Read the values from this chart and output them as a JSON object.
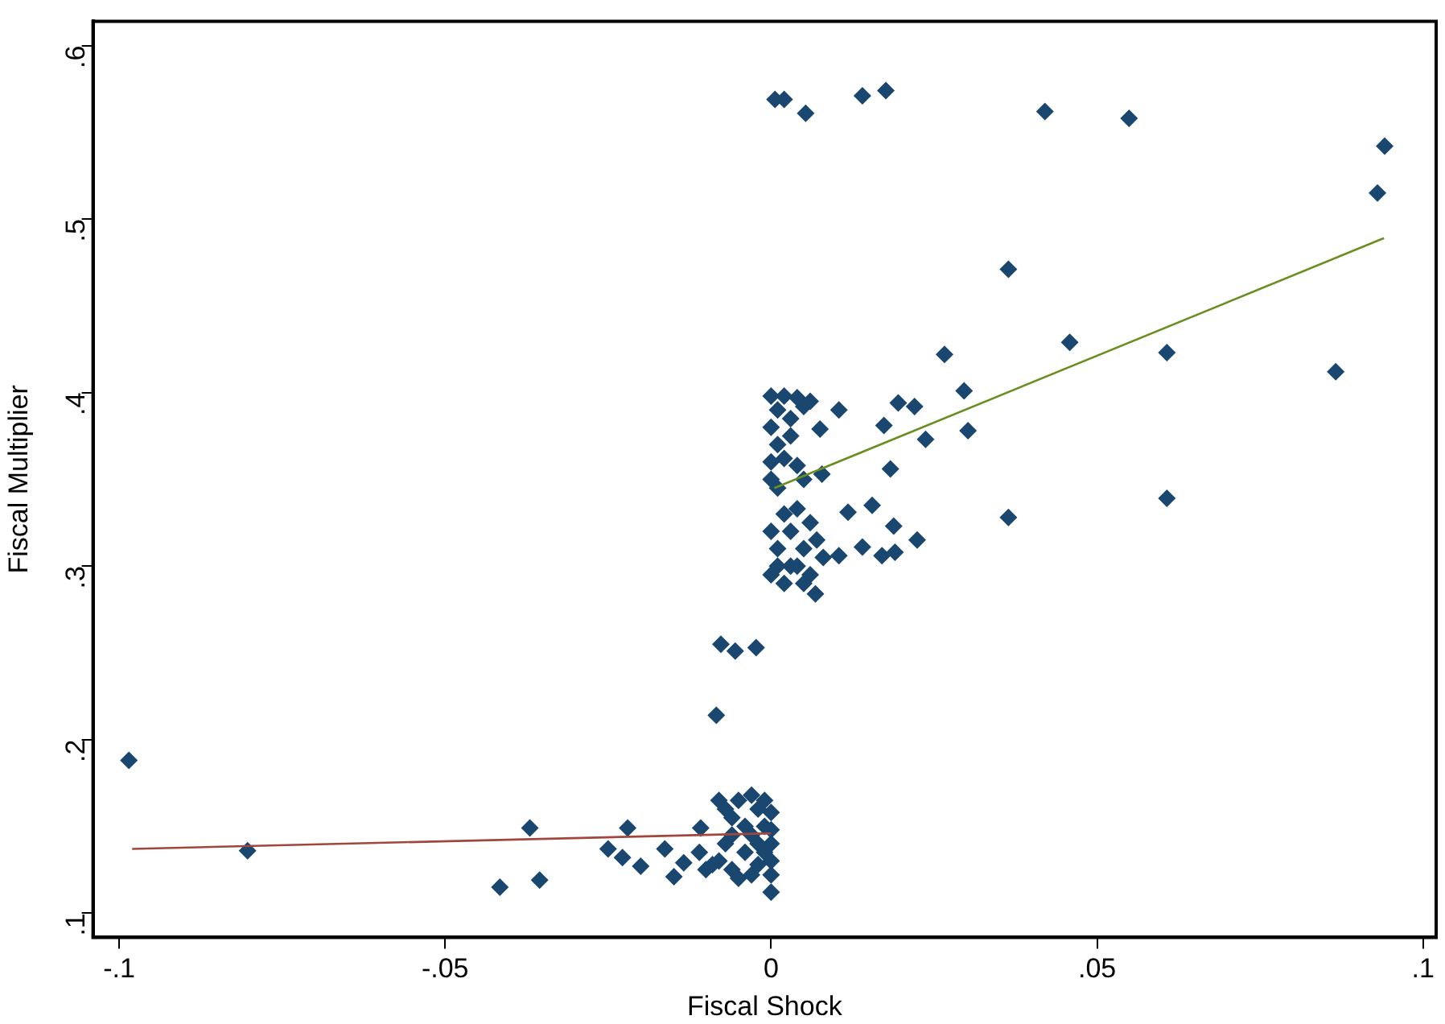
{
  "chart_data": {
    "type": "scatter",
    "xlabel": "Fiscal Shock",
    "ylabel": "Fiscal Multiplier",
    "grid": false,
    "legend": false,
    "xlim": [
      -0.104,
      0.102
    ],
    "ylim": [
      0.086,
      0.614
    ],
    "xticks": [
      {
        "value": -0.1,
        "label": "-.1"
      },
      {
        "value": -0.05,
        "label": "-.05"
      },
      0,
      {
        "value": 0.05,
        "label": ".05"
      },
      {
        "value": 0.1,
        "label": ".1"
      }
    ],
    "yticks": [
      {
        "value": 0.1,
        "label": ".1"
      },
      {
        "value": 0.2,
        "label": ".2"
      },
      {
        "value": 0.3,
        "label": ".3"
      },
      {
        "value": 0.4,
        "label": ".4"
      },
      {
        "value": 0.5,
        "label": ".5"
      },
      {
        "value": 0.6,
        "label": ".6"
      }
    ],
    "series": [
      {
        "type": "scatter",
        "marker": "diamond",
        "color": "#1a476f",
        "x": [
          -0.0985,
          -0.0803,
          -0.0416,
          -0.037,
          -0.0355,
          -0.025,
          -0.022,
          -0.0228,
          -0.02,
          -0.0163,
          -0.0149,
          -0.0134,
          -0.0108,
          -0.011,
          -0.0084,
          -0.0077,
          -0.0055,
          -0.0023,
          -0.008,
          -0.007,
          -0.006,
          -0.005,
          -0.004,
          -0.003,
          -0.002,
          -0.001,
          0,
          0,
          0,
          0,
          0,
          0,
          -0.008,
          -0.006,
          -0.005,
          -0.003,
          -0.002,
          -0.004,
          -0.002,
          -0.007,
          -0.001,
          -0.003,
          -0.001,
          -0.006,
          -0.009,
          -0.01,
          0.0006,
          0.002,
          0.0053,
          0.014,
          0.0176,
          0.042,
          0.0549,
          0.0941,
          0.093,
          0.0364,
          0.0458,
          0.0607,
          0.0866,
          0.0266,
          0.0296,
          0.0302,
          0.0237,
          0.022,
          0.0195,
          0.0173,
          0.0183,
          0.0364,
          0.0607,
          0.0224,
          0.0188,
          0.0155,
          0.0104,
          0.0075,
          0.0078,
          0.0068,
          0.0118,
          0.0104,
          0.014,
          0.019,
          0.017,
          0,
          0.002,
          0.004,
          0.001,
          0,
          0.003,
          0.001,
          0,
          0.002,
          0,
          0.001,
          0.003,
          0.005,
          0.006,
          0.004,
          0.005,
          0,
          0.002,
          0.004,
          0.006,
          0.001,
          0.003,
          0.005,
          0.007,
          0,
          0.002,
          0.004,
          0.006,
          0.008,
          0.003,
          0.001,
          0.005
        ],
        "values": [
          0.188,
          0.136,
          0.115,
          0.149,
          0.119,
          0.137,
          0.149,
          0.132,
          0.127,
          0.137,
          0.121,
          0.129,
          0.149,
          0.135,
          0.214,
          0.255,
          0.251,
          0.253,
          0.165,
          0.16,
          0.155,
          0.165,
          0.15,
          0.168,
          0.16,
          0.165,
          0.158,
          0.148,
          0.14,
          0.13,
          0.122,
          0.112,
          0.13,
          0.125,
          0.12,
          0.122,
          0.128,
          0.135,
          0.14,
          0.14,
          0.135,
          0.145,
          0.15,
          0.145,
          0.128,
          0.125,
          0.569,
          0.569,
          0.561,
          0.571,
          0.574,
          0.562,
          0.558,
          0.542,
          0.515,
          0.471,
          0.429,
          0.423,
          0.412,
          0.422,
          0.401,
          0.378,
          0.373,
          0.392,
          0.394,
          0.381,
          0.356,
          0.328,
          0.339,
          0.315,
          0.323,
          0.335,
          0.39,
          0.379,
          0.353,
          0.284,
          0.331,
          0.306,
          0.311,
          0.308,
          0.306,
          0.398,
          0.398,
          0.397,
          0.39,
          0.38,
          0.385,
          0.37,
          0.36,
          0.362,
          0.35,
          0.345,
          0.375,
          0.392,
          0.395,
          0.358,
          0.35,
          0.295,
          0.29,
          0.3,
          0.295,
          0.31,
          0.32,
          0.31,
          0.315,
          0.32,
          0.33,
          0.333,
          0.325,
          0.305,
          0.3,
          0.3,
          0.29
        ]
      },
      {
        "type": "line",
        "marker": "none",
        "color": "#a0463c",
        "x": [
          -0.098,
          0
        ],
        "values": [
          0.137,
          0.146
        ]
      },
      {
        "type": "line",
        "marker": "none",
        "color": "#6b8e23",
        "x": [
          0.0005,
          0.094
        ],
        "values": [
          0.345,
          0.489
        ]
      }
    ]
  }
}
